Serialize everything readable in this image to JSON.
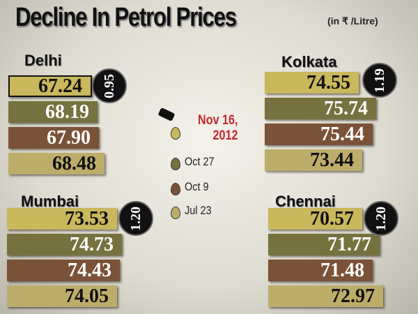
{
  "header": {
    "title": "Decline In Petrol Prices",
    "unit": "(in ₹ /Litre)"
  },
  "legend": [
    {
      "label": "Nov 16, 2012",
      "color": "#c9b85c"
    },
    {
      "label": "Oct 27",
      "color": "#75723f"
    },
    {
      "label": "Oct 9",
      "color": "#7a5237"
    },
    {
      "label": "Jul 23",
      "color": "#bcae6a"
    }
  ],
  "cities": [
    {
      "name": "Delhi",
      "prices": [
        "67.24",
        "68.19",
        "67.90",
        "68.48"
      ],
      "decline": "0.95"
    },
    {
      "name": "Kolkata",
      "prices": [
        "74.55",
        "75.74",
        "75.44",
        "73.44"
      ],
      "decline": "1.19"
    },
    {
      "name": "Mumbai",
      "prices": [
        "73.53",
        "74.73",
        "74.43",
        "74.05"
      ],
      "decline": "1.20"
    },
    {
      "name": "Chennai",
      "prices": [
        "70.57",
        "71.77",
        "71.48",
        "72.97"
      ],
      "decline": "1.20"
    }
  ]
}
